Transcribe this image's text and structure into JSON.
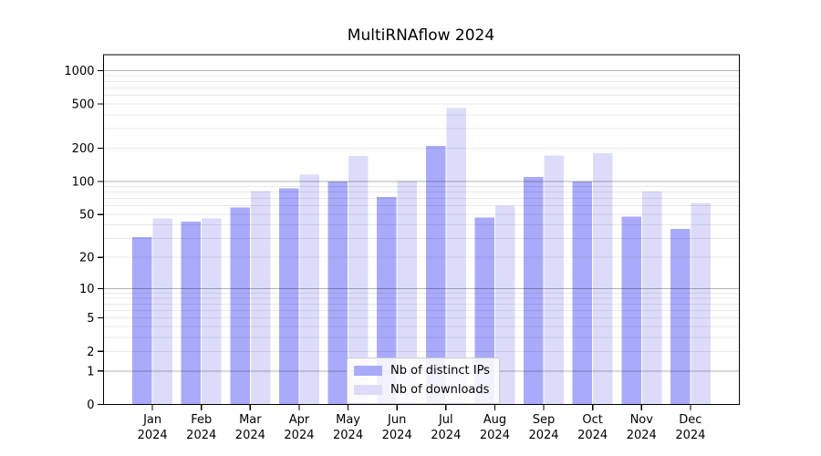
{
  "chart_data": {
    "type": "bar",
    "title": "MultiRNAflow 2024",
    "categories": [
      "Jan 2024",
      "Feb 2024",
      "Mar 2024",
      "Apr 2024",
      "May 2024",
      "Jun 2024",
      "Jul 2024",
      "Aug 2024",
      "Sep 2024",
      "Oct 2024",
      "Nov 2024",
      "Dec 2024"
    ],
    "series": [
      {
        "name": "Nb of distinct IPs",
        "color": "#aaaafa",
        "values": [
          31,
          43,
          58,
          87,
          100,
          72,
          210,
          47,
          110,
          100,
          48,
          37
        ]
      },
      {
        "name": "Nb of downloads",
        "color": "#dcdcfa",
        "values": [
          46,
          46,
          82,
          115,
          170,
          101,
          460,
          60,
          172,
          181,
          81,
          64
        ]
      }
    ],
    "xlabel": "",
    "ylabel": "",
    "y_ticks": [
      0,
      1,
      2,
      5,
      10,
      20,
      50,
      100,
      200,
      500,
      1000
    ],
    "major_grid_values": [
      1,
      10,
      100,
      1000
    ],
    "y_scale": "log1p",
    "ylim": [
      0,
      1400
    ],
    "grid": "horizontal-major-and-minor",
    "legend_position": "lower center",
    "background_color": "#ffffff",
    "frame_color": "#000000"
  }
}
